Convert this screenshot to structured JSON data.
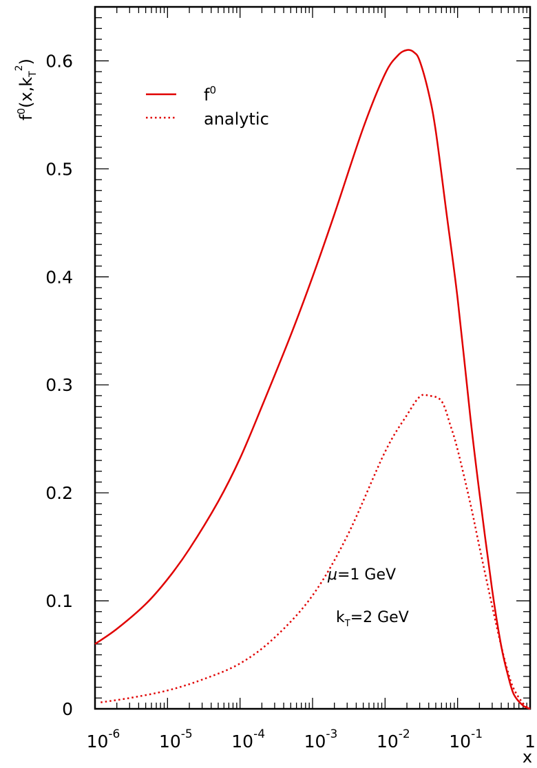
{
  "chart_data": {
    "type": "line",
    "xscale": "log",
    "xlim": [
      1e-06,
      1
    ],
    "ylim": [
      0,
      0.65
    ],
    "xlabel": "x",
    "ylabel": "f⁰(x,k²T)",
    "ylabel_parts": {
      "main": "f",
      "sup0": "0",
      "open": "(x,k",
      "subT": "T",
      "sup2": "2",
      "close": ")"
    },
    "x_ticks": [
      {
        "base": "10",
        "exp": "-6",
        "value": 1e-06
      },
      {
        "base": "10",
        "exp": "-5",
        "value": 1e-05
      },
      {
        "base": "10",
        "exp": "-4",
        "value": 0.0001
      },
      {
        "base": "10",
        "exp": "-3",
        "value": 0.001
      },
      {
        "base": "10",
        "exp": "-2",
        "value": 0.01
      },
      {
        "base": "10",
        "exp": "-1",
        "value": 0.1
      },
      {
        "base": "1",
        "exp": "",
        "value": 1
      }
    ],
    "y_ticks": [
      {
        "label": "0",
        "value": 0
      },
      {
        "label": "0.1",
        "value": 0.1
      },
      {
        "label": "0.2",
        "value": 0.2
      },
      {
        "label": "0.3",
        "value": 0.3
      },
      {
        "label": "0.4",
        "value": 0.4
      },
      {
        "label": "0.5",
        "value": 0.5
      },
      {
        "label": "0.6",
        "value": 0.6
      }
    ],
    "legend": {
      "placement": "top-left",
      "entries": [
        {
          "label": "f",
          "sup": "0",
          "style": "solid"
        },
        {
          "label": "analytic",
          "sup": "",
          "style": "dotted"
        }
      ]
    },
    "annotations": [
      {
        "prefix": "μ",
        "sub": "",
        "rest": "=1 GeV"
      },
      {
        "prefix": "k",
        "sub": "T",
        "rest": "=2 GeV"
      }
    ],
    "series": [
      {
        "name": "f0",
        "style": "solid",
        "color": "#e00000",
        "x": [
          1e-06,
          2e-06,
          5e-06,
          1e-05,
          2e-05,
          5e-05,
          0.0001,
          0.0002,
          0.0005,
          0.001,
          0.002,
          0.005,
          0.01,
          0.015,
          0.02,
          0.025,
          0.03,
          0.04,
          0.05,
          0.07,
          0.1,
          0.15,
          0.2,
          0.3,
          0.4,
          0.5,
          0.6,
          0.8,
          1.0
        ],
        "y": [
          0.06,
          0.074,
          0.097,
          0.12,
          0.148,
          0.192,
          0.232,
          0.28,
          0.346,
          0.4,
          0.458,
          0.538,
          0.588,
          0.605,
          0.61,
          0.608,
          0.6,
          0.57,
          0.535,
          0.46,
          0.38,
          0.27,
          0.2,
          0.11,
          0.058,
          0.03,
          0.013,
          0.003,
          0.0
        ]
      },
      {
        "name": "analytic",
        "style": "dotted",
        "color": "#e00000",
        "x": [
          1.2e-06,
          3e-06,
          1e-05,
          3e-05,
          0.0001,
          0.0003,
          0.001,
          0.003,
          0.01,
          0.02,
          0.03,
          0.04,
          0.06,
          0.08,
          0.1,
          0.15,
          0.2,
          0.3,
          0.4,
          0.5,
          0.6,
          0.8,
          1.0
        ],
        "y": [
          0.006,
          0.01,
          0.017,
          0.027,
          0.042,
          0.066,
          0.105,
          0.16,
          0.238,
          0.272,
          0.289,
          0.29,
          0.285,
          0.262,
          0.24,
          0.19,
          0.15,
          0.095,
          0.058,
          0.033,
          0.018,
          0.005,
          0.0
        ]
      }
    ]
  }
}
